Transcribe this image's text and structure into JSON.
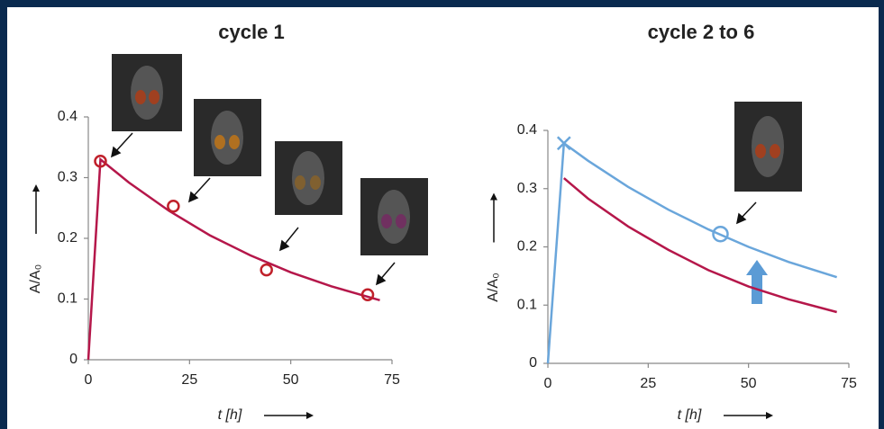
{
  "chart_data": [
    {
      "type": "line",
      "title": "cycle 1",
      "x_label": "t [h]",
      "y_label": "A/A₀",
      "xlim": [
        0,
        75
      ],
      "ylim": [
        0,
        0.4
      ],
      "xticks": [
        0,
        25,
        50,
        75
      ],
      "yticks": [
        0,
        0.1,
        0.2,
        0.3,
        0.4
      ],
      "series": [
        {
          "color": "#b5174a",
          "style": "line",
          "x": [
            0,
            3,
            10,
            20,
            30,
            40,
            50,
            60,
            72
          ],
          "values": [
            0,
            0.33,
            0.292,
            0.245,
            0.205,
            0.172,
            0.144,
            0.121,
            0.098
          ]
        },
        {
          "color": "#c0202a",
          "style": "markers",
          "marker": "circle",
          "x": [
            3,
            21,
            44,
            69
          ],
          "values": [
            0.327,
            0.253,
            0.148,
            0.107
          ]
        }
      ]
    },
    {
      "type": "line",
      "title": "cycle 2 to 6",
      "x_label": "t [h]",
      "y_label": "A/A₀",
      "xlim": [
        0,
        75
      ],
      "ylim": [
        0,
        0.4
      ],
      "xticks": [
        0,
        25,
        50,
        75
      ],
      "yticks": [
        0,
        0.1,
        0.2,
        0.3,
        0.4
      ],
      "series": [
        {
          "color": "#6aa6db",
          "style": "line",
          "x": [
            0,
            4,
            10,
            20,
            30,
            40,
            50,
            60,
            72
          ],
          "values": [
            0,
            0.378,
            0.348,
            0.303,
            0.264,
            0.23,
            0.2,
            0.174,
            0.148
          ]
        },
        {
          "color": "#b5174a",
          "style": "line",
          "x": [
            4,
            10,
            20,
            30,
            40,
            50,
            60,
            72
          ],
          "values": [
            0.318,
            0.283,
            0.235,
            0.195,
            0.16,
            0.132,
            0.11,
            0.088
          ]
        },
        {
          "color": "#6aa6db",
          "style": "markers",
          "marker": "x",
          "x": [
            4
          ],
          "values": [
            0.378
          ]
        },
        {
          "color": "#6aa6db",
          "style": "markers",
          "marker": "circle",
          "x": [
            43
          ],
          "values": [
            0.222
          ]
        }
      ]
    }
  ]
}
